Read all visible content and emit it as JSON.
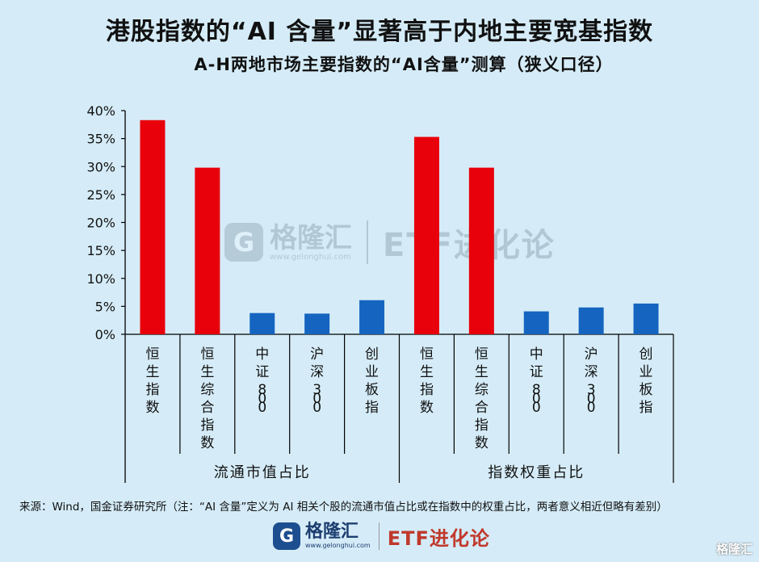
{
  "title": "港股指数的“AI 含量”显著高于内地主要宽基指数",
  "source": "来源：Wind，国金证券研究所（注：“AI 含量”定义为 AI 相关个股的流通市值占比或在指数中的权重占比，两者意义相近但略有差别）",
  "logo": {
    "mark": "G",
    "name": "格隆汇",
    "url": "www.gelonghui.com",
    "brand": "ETF进化论"
  },
  "watermark": {
    "mark": "G",
    "name": "格隆汇",
    "url": "www.gelonghui.com",
    "brand": "ETF进化论"
  },
  "corner_mark": "格隆汇",
  "colors": {
    "background": "#d5ecf8",
    "hk": "#e8000b",
    "mainland": "#1565c0",
    "axis": "#000000"
  },
  "chart_data": {
    "type": "bar",
    "title": "A-H两地市场主要指数的“AI含量”测算（狭义口径）",
    "ylim": [
      0,
      40
    ],
    "yticks": [
      "0%",
      "5%",
      "10%",
      "15%",
      "20%",
      "25%",
      "30%",
      "35%",
      "40%"
    ],
    "groups": [
      "流通市值占比",
      "指数权重占比"
    ],
    "categories": [
      "恒生指数",
      "恒生综合指数",
      "中证800",
      "沪深300",
      "创业板指",
      "恒生指数",
      "恒生综合指数",
      "中证800",
      "沪深300",
      "创业板指"
    ],
    "values": [
      38.3,
      29.8,
      3.8,
      3.7,
      6.1,
      35.3,
      29.8,
      4.1,
      4.8,
      5.5
    ],
    "group_of": [
      0,
      0,
      0,
      0,
      0,
      1,
      1,
      1,
      1,
      1
    ],
    "color_keys": [
      "hk",
      "hk",
      "mainland",
      "mainland",
      "mainland",
      "hk",
      "hk",
      "mainland",
      "mainland",
      "mainland"
    ],
    "grid": false,
    "legend": "none"
  }
}
